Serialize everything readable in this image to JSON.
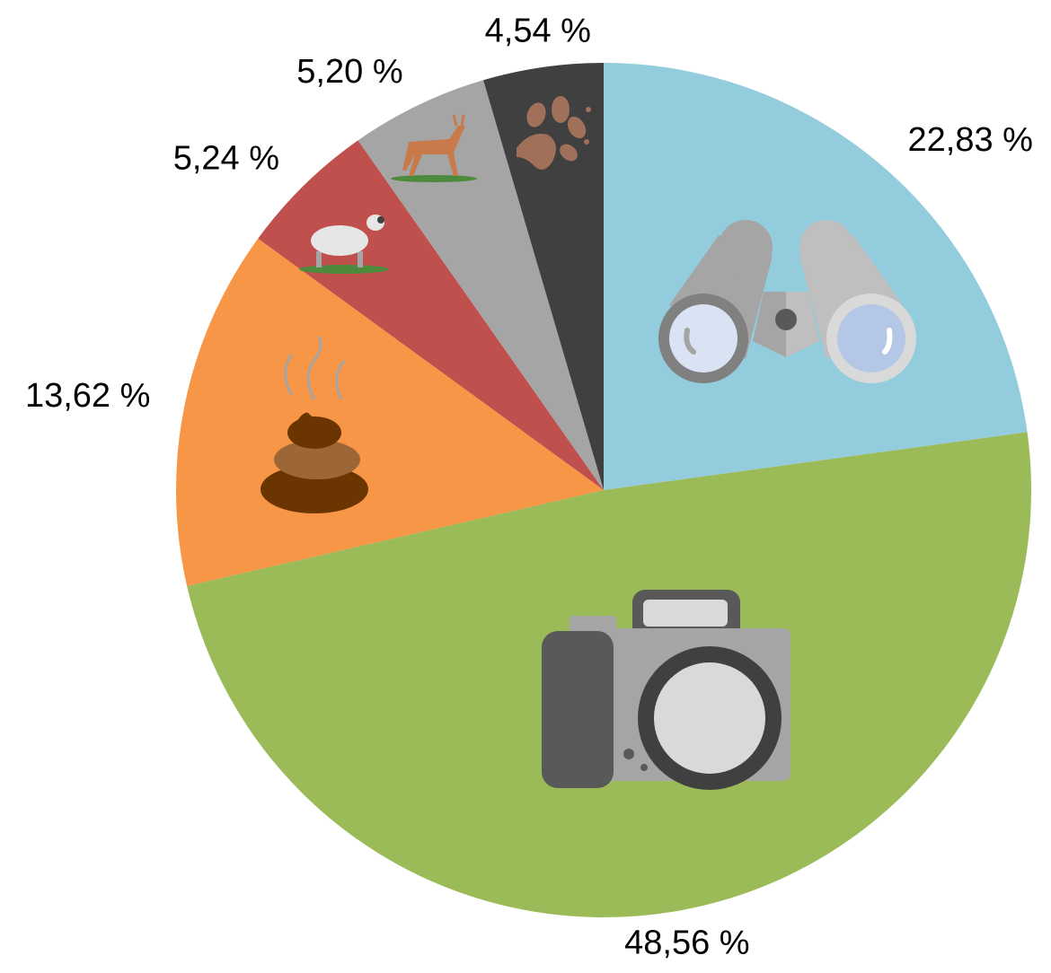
{
  "chart_data": {
    "type": "pie",
    "values": [
      22.83,
      48.56,
      13.62,
      5.24,
      5.2,
      4.54
    ],
    "value_labels": [
      "22,83 %",
      "48,56 %",
      "13,62 %",
      "5,24 %",
      "5,20 %",
      "4,54 %"
    ],
    "colors": [
      "#93cddd",
      "#9bbb59",
      "#f79646",
      "#c0504d",
      "#a5a5a5",
      "#404040"
    ]
  }
}
